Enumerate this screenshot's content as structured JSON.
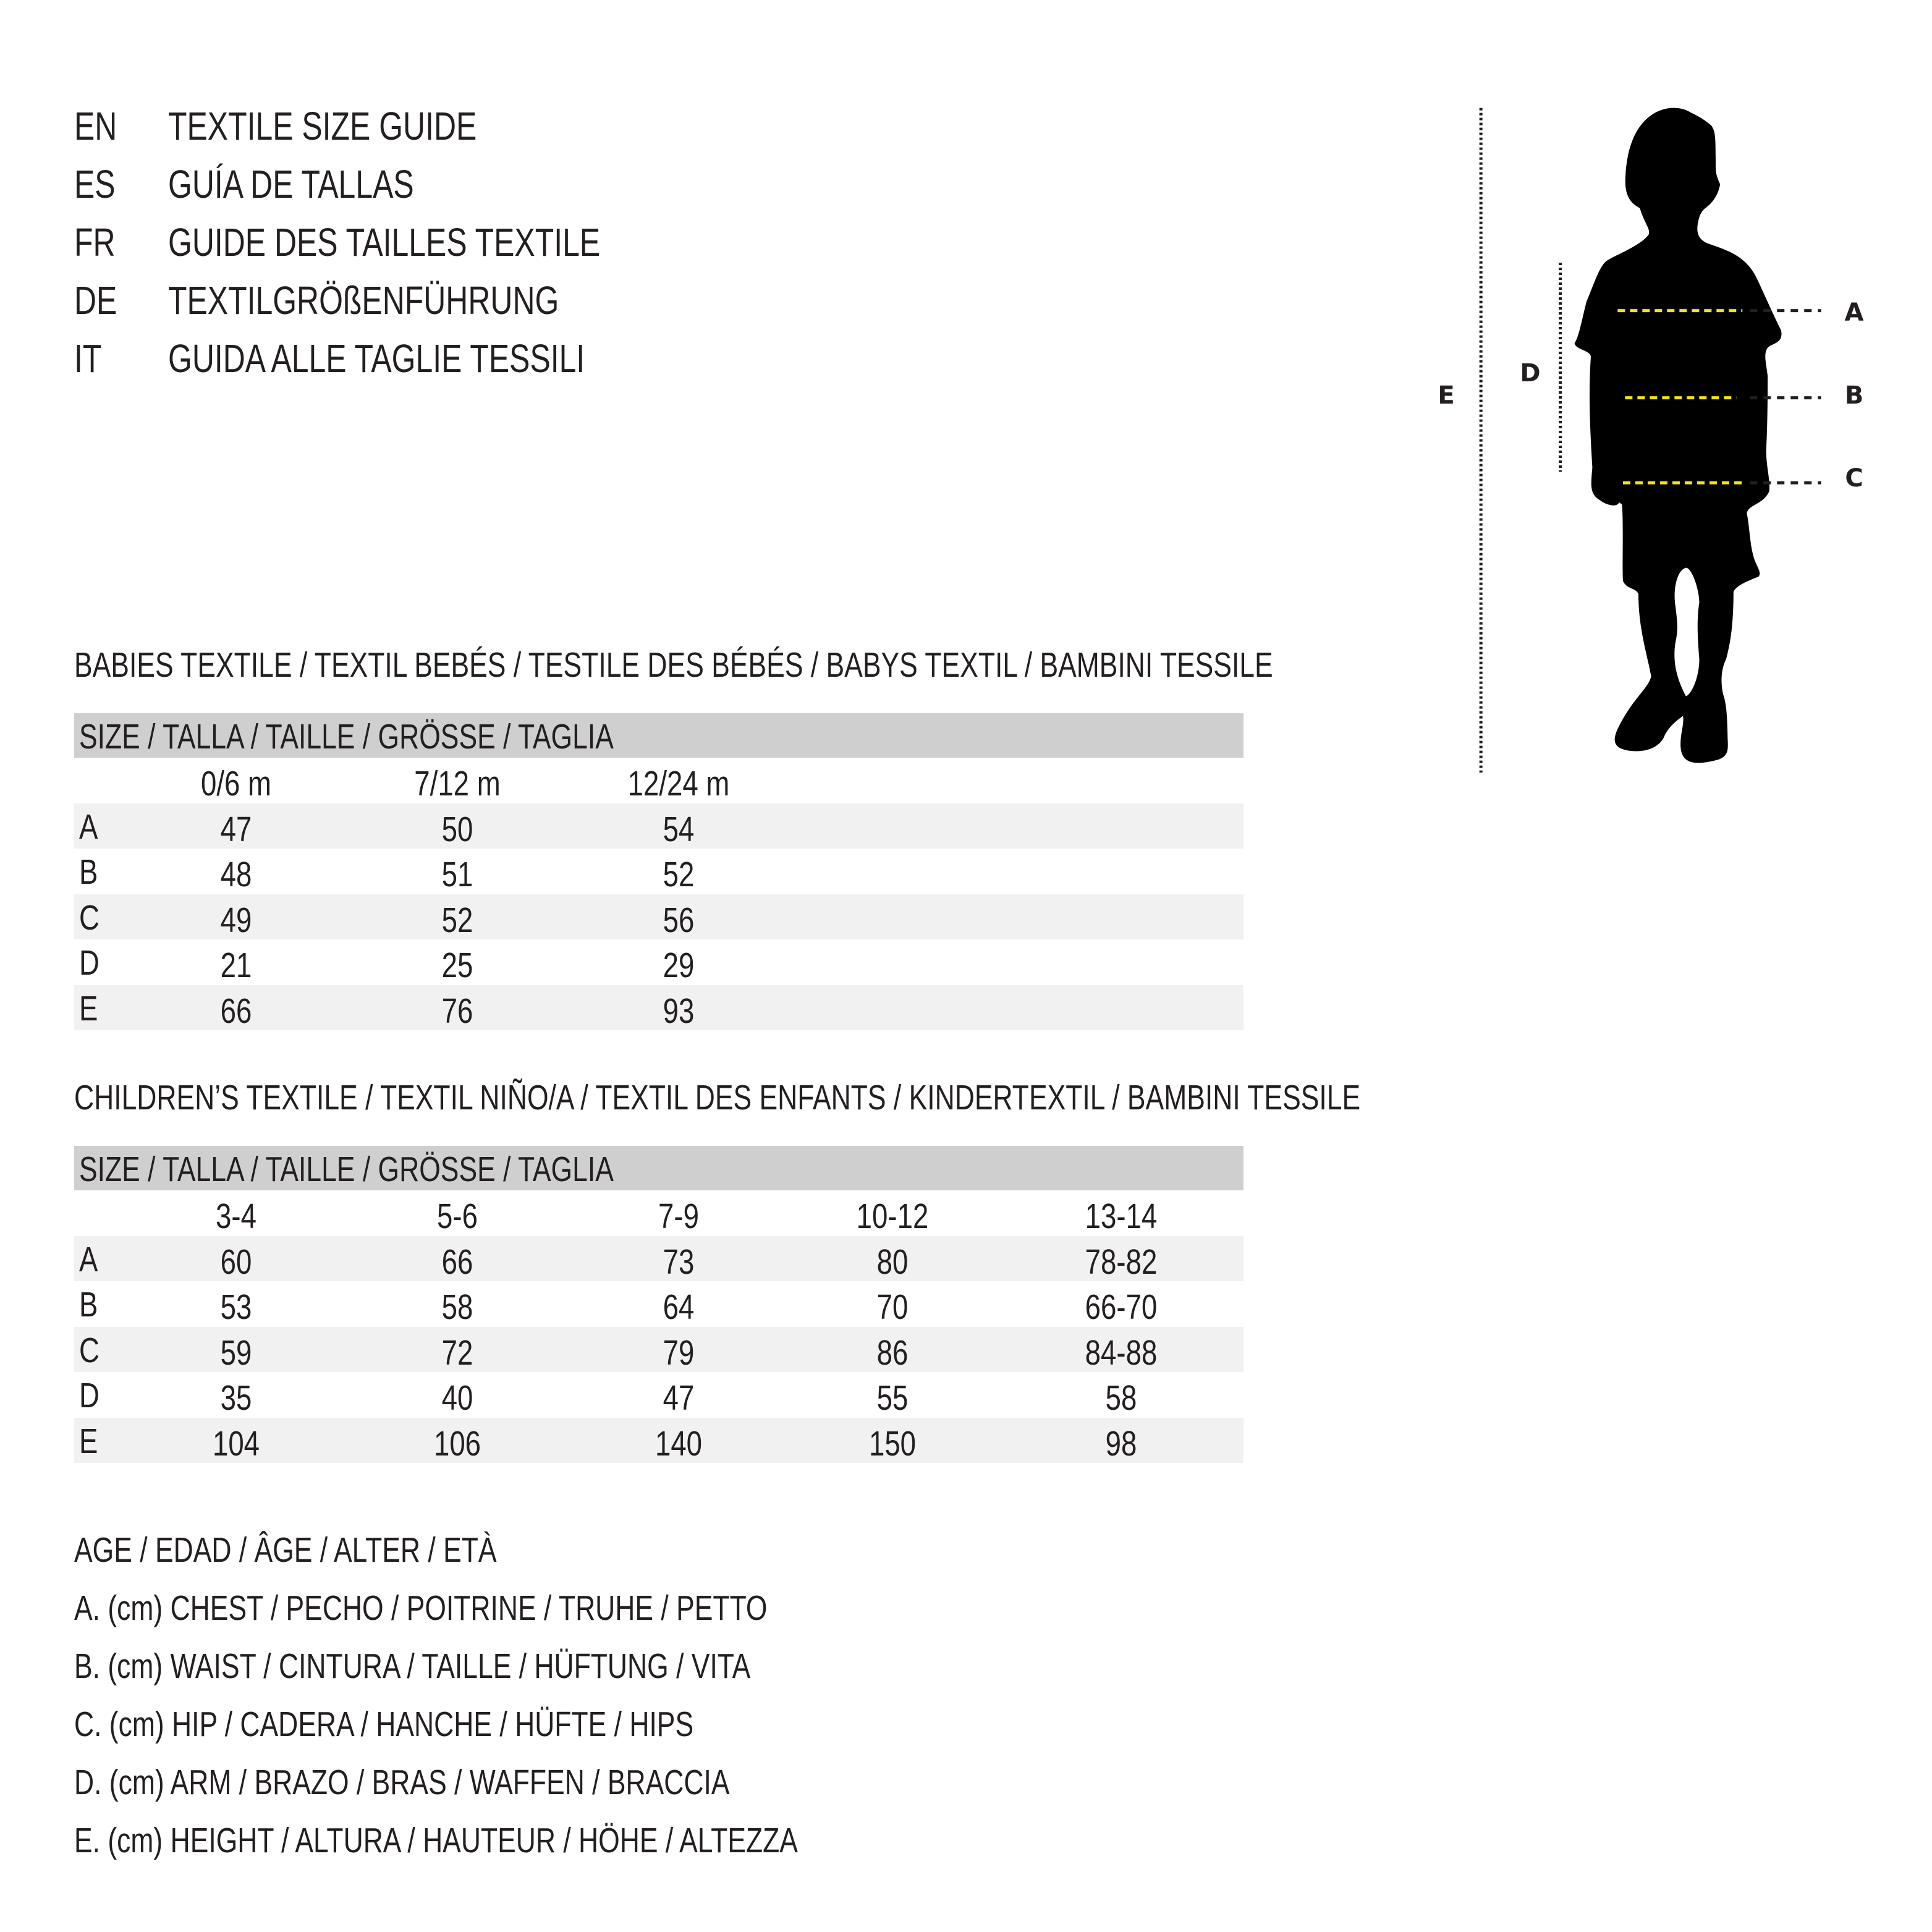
{
  "title_lines": [
    {
      "lang": "EN",
      "text": "TEXTILE SIZE GUIDE"
    },
    {
      "lang": "ES",
      "text": "GUÍA DE TALLAS"
    },
    {
      "lang": "FR",
      "text": "GUIDE DES TAILLES TEXTILE"
    },
    {
      "lang": "DE",
      "text": "TEXTILGRÖßENFÜHRUNG"
    },
    {
      "lang": "IT",
      "text": "GUIDA ALLE TAGLIE TESSILI"
    }
  ],
  "babies": {
    "heading": "BABIES TEXTILE / TEXTIL BEBÉS / TESTILE DES BÉBÉS / BABYS TEXTIL / BAMBINI TESSILE",
    "size_header": "SIZE / TALLA / TAILLE / GRÖSSE / TAGLIA",
    "columns": [
      "0/6 m",
      "7/12 m",
      "12/24 m"
    ],
    "rows": [
      {
        "label": "A",
        "values": [
          "47",
          "50",
          "54"
        ]
      },
      {
        "label": "B",
        "values": [
          "48",
          "51",
          "52"
        ]
      },
      {
        "label": "C",
        "values": [
          "49",
          "52",
          "56"
        ]
      },
      {
        "label": "D",
        "values": [
          "21",
          "25",
          "29"
        ]
      },
      {
        "label": "E",
        "values": [
          "66",
          "76",
          "93"
        ]
      }
    ]
  },
  "children": {
    "heading": "CHILDREN’S TEXTILE / TEXTIL NIÑO/A / TEXTIL DES ENFANTS / KINDERTEXTIL / BAMBINI TESSILE",
    "size_header": "SIZE / TALLA / TAILLE / GRÖSSE / TAGLIA",
    "columns": [
      "3-4",
      "5-6",
      "7-9",
      "10-12",
      "13-14"
    ],
    "rows": [
      {
        "label": "A",
        "values": [
          "60",
          "66",
          "73",
          "80",
          "78-82"
        ]
      },
      {
        "label": "B",
        "values": [
          "53",
          "58",
          "64",
          "70",
          "66-70"
        ]
      },
      {
        "label": "C",
        "values": [
          "59",
          "72",
          "79",
          "86",
          "84-88"
        ]
      },
      {
        "label": "D",
        "values": [
          "35",
          "40",
          "47",
          "55",
          "58"
        ]
      },
      {
        "label": "E",
        "values": [
          "104",
          "106",
          "140",
          "150",
          "98"
        ]
      }
    ]
  },
  "legend": [
    "AGE / EDAD / ÂGE / ALTER / ETÀ",
    "A. (cm) CHEST / PECHO / POITRINE / TRUHE / PETTO",
    "B. (cm) WAIST / CINTURA / TAILLE / HÜFTUNG / VITA",
    "C. (cm) HIP / CADERA / HANCHE / HÜFTE / HIPS",
    "D. (cm) ARM / BRAZO / BRAS / WAFFEN / BRACCIA",
    "E. (cm) HEIGHT / ALTURA / HAUTEUR / HÖHE / ALTEZZA"
  ],
  "figure": {
    "labels": {
      "A": "A",
      "B": "B",
      "C": "C",
      "D": "D",
      "E": "E"
    },
    "measure_line_color": "#f5e11a",
    "silhouette_color": "#000000"
  }
}
